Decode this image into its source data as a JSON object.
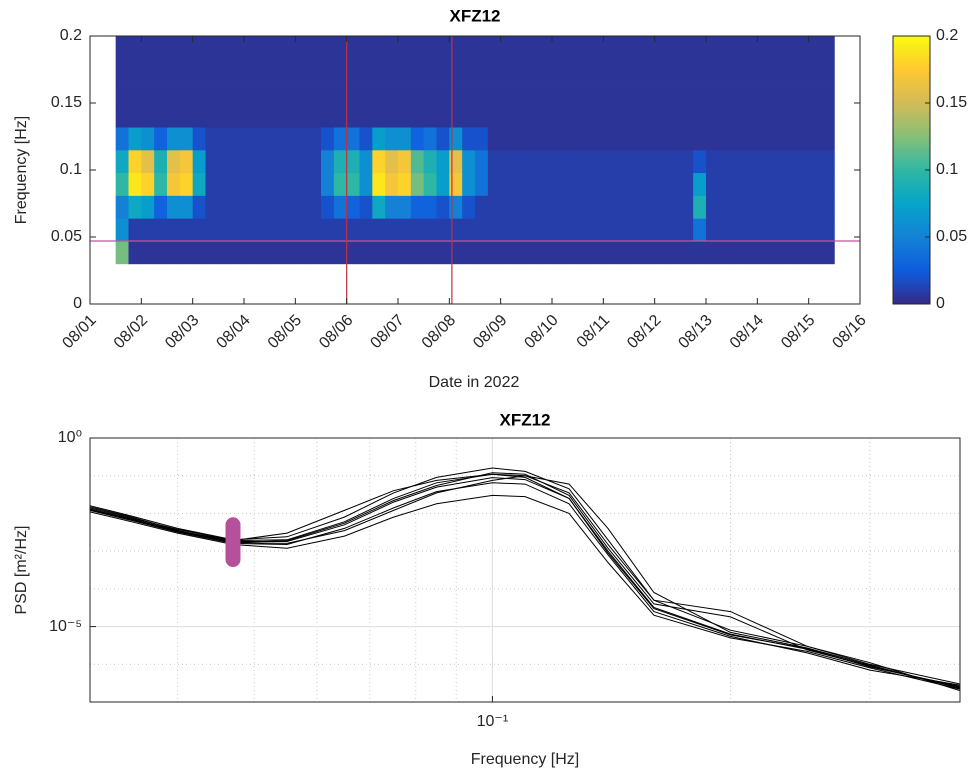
{
  "chart_data": [
    {
      "type": "heatmap",
      "title": "XFZ12",
      "x_label": "Date in 2022",
      "y_label": "Frequency [Hz]",
      "xlim": [
        1,
        16
      ],
      "xticks": [
        {
          "value": 1,
          "label": "08/01"
        },
        {
          "value": 2,
          "label": "08/02"
        },
        {
          "value": 3,
          "label": "08/03"
        },
        {
          "value": 4,
          "label": "08/04"
        },
        {
          "value": 5,
          "label": "08/05"
        },
        {
          "value": 6,
          "label": "08/06"
        },
        {
          "value": 7,
          "label": "08/07"
        },
        {
          "value": 8,
          "label": "08/08"
        },
        {
          "value": 9,
          "label": "08/09"
        },
        {
          "value": 10,
          "label": "08/10"
        },
        {
          "value": 11,
          "label": "08/11"
        },
        {
          "value": 12,
          "label": "08/12"
        },
        {
          "value": 13,
          "label": "08/13"
        },
        {
          "value": 14,
          "label": "08/14"
        },
        {
          "value": 15,
          "label": "08/15"
        },
        {
          "value": 16,
          "label": "08/16"
        }
      ],
      "ylim": [
        0,
        0.2
      ],
      "yticks": [
        0,
        0.05,
        0.1,
        0.15,
        0.2
      ],
      "x": [
        1.625,
        1.875,
        2.125,
        2.375,
        2.625,
        2.875,
        3.125,
        3.375,
        3.625,
        3.875,
        4.125,
        4.375,
        4.625,
        4.875,
        5.125,
        5.375,
        5.625,
        5.875,
        6.125,
        6.375,
        6.625,
        6.875,
        7.125,
        7.375,
        7.625,
        7.875,
        8.125,
        8.375,
        8.625,
        8.875,
        9.125,
        9.375,
        9.625,
        9.875,
        10.125,
        10.375,
        10.625,
        10.875,
        11.125,
        11.375,
        11.625,
        11.875,
        12.125,
        12.375,
        12.625,
        12.875,
        13.125,
        13.375,
        13.625,
        13.875,
        14.125,
        14.375,
        14.625,
        14.875,
        15.125,
        15.375
      ],
      "y": [
        0.0385,
        0.0555,
        0.0725,
        0.0895,
        0.1065,
        0.1235,
        0.1405,
        0.1575,
        0.1745,
        0.1915
      ],
      "z": [
        [
          0.12,
          0.005,
          0.005,
          0.005,
          0.005,
          0.005,
          0.005,
          0.005,
          0.005,
          0.005,
          0.005,
          0.005,
          0.005,
          0.005,
          0.005,
          0.005,
          0.005,
          0.005,
          0.005,
          0.005,
          0.005,
          0.005,
          0.005,
          0.005,
          0.005,
          0.005,
          0.005,
          0.005,
          0.005,
          0.005,
          0.005,
          0.005,
          0.005,
          0.005,
          0.005,
          0.005,
          0.005,
          0.005,
          0.005,
          0.005,
          0.005,
          0.005,
          0.005,
          0.005,
          0.005,
          0.005,
          0.005,
          0.005,
          0.005,
          0.005,
          0.005,
          0.005,
          0.005,
          0.005,
          0.005,
          0.005
        ],
        [
          0.06,
          0.01,
          0.01,
          0.01,
          0.01,
          0.01,
          0.01,
          0.01,
          0.01,
          0.01,
          0.01,
          0.01,
          0.01,
          0.01,
          0.01,
          0.01,
          0.01,
          0.01,
          0.01,
          0.01,
          0.01,
          0.01,
          0.01,
          0.01,
          0.01,
          0.01,
          0.01,
          0.01,
          0.01,
          0.01,
          0.01,
          0.01,
          0.01,
          0.01,
          0.01,
          0.01,
          0.01,
          0.01,
          0.01,
          0.01,
          0.01,
          0.01,
          0.01,
          0.01,
          0.01,
          0.04,
          0.01,
          0.01,
          0.01,
          0.01,
          0.01,
          0.01,
          0.01,
          0.01,
          0.01,
          0.01
        ],
        [
          0.05,
          0.08,
          0.07,
          0.03,
          0.06,
          0.06,
          0.02,
          0.01,
          0.01,
          0.01,
          0.01,
          0.01,
          0.01,
          0.01,
          0.01,
          0.01,
          0.02,
          0.04,
          0.03,
          0.02,
          0.08,
          0.05,
          0.05,
          0.03,
          0.03,
          0.02,
          0.05,
          0.02,
          0.01,
          0.01,
          0.01,
          0.01,
          0.01,
          0.01,
          0.01,
          0.01,
          0.01,
          0.01,
          0.01,
          0.01,
          0.01,
          0.01,
          0.01,
          0.01,
          0.01,
          0.09,
          0.01,
          0.01,
          0.01,
          0.01,
          0.01,
          0.01,
          0.01,
          0.01,
          0.01,
          0.01
        ],
        [
          0.1,
          0.19,
          0.18,
          0.1,
          0.17,
          0.18,
          0.08,
          0.01,
          0.01,
          0.01,
          0.01,
          0.01,
          0.01,
          0.01,
          0.01,
          0.01,
          0.05,
          0.1,
          0.1,
          0.06,
          0.19,
          0.17,
          0.18,
          0.12,
          0.1,
          0.07,
          0.17,
          0.06,
          0.04,
          0.01,
          0.01,
          0.01,
          0.01,
          0.01,
          0.01,
          0.01,
          0.01,
          0.01,
          0.01,
          0.01,
          0.01,
          0.01,
          0.01,
          0.01,
          0.01,
          0.07,
          0.01,
          0.01,
          0.01,
          0.01,
          0.01,
          0.01,
          0.01,
          0.01,
          0.01,
          0.01
        ],
        [
          0.08,
          0.18,
          0.16,
          0.09,
          0.16,
          0.17,
          0.07,
          0.01,
          0.01,
          0.01,
          0.01,
          0.01,
          0.01,
          0.01,
          0.01,
          0.01,
          0.05,
          0.09,
          0.09,
          0.06,
          0.18,
          0.16,
          0.17,
          0.11,
          0.09,
          0.07,
          0.16,
          0.06,
          0.04,
          0.01,
          0.01,
          0.01,
          0.01,
          0.01,
          0.01,
          0.01,
          0.01,
          0.01,
          0.01,
          0.01,
          0.01,
          0.01,
          0.01,
          0.01,
          0.01,
          0.02,
          0.01,
          0.01,
          0.01,
          0.01,
          0.01,
          0.01,
          0.01,
          0.01,
          0.01,
          0.01
        ],
        [
          0.04,
          0.07,
          0.06,
          0.03,
          0.06,
          0.06,
          0.02,
          0.01,
          0.01,
          0.01,
          0.01,
          0.01,
          0.01,
          0.01,
          0.01,
          0.01,
          0.02,
          0.04,
          0.04,
          0.02,
          0.07,
          0.06,
          0.06,
          0.03,
          0.04,
          0.02,
          0.06,
          0.02,
          0.02,
          0.005,
          0.005,
          0.005,
          0.005,
          0.005,
          0.005,
          0.005,
          0.005,
          0.005,
          0.005,
          0.005,
          0.005,
          0.005,
          0.005,
          0.005,
          0.005,
          0.005,
          0.005,
          0.005,
          0.005,
          0.005,
          0.005,
          0.005,
          0.005,
          0.005,
          0.005,
          0.005
        ],
        [
          0.005,
          0.005,
          0.005,
          0.005,
          0.005,
          0.005,
          0.005,
          0.005,
          0.005,
          0.005,
          0.005,
          0.005,
          0.005,
          0.005,
          0.005,
          0.005,
          0.005,
          0.005,
          0.005,
          0.005,
          0.005,
          0.005,
          0.005,
          0.005,
          0.005,
          0.005,
          0.005,
          0.005,
          0.005,
          0.005,
          0.005,
          0.005,
          0.005,
          0.005,
          0.005,
          0.005,
          0.005,
          0.005,
          0.005,
          0.005,
          0.005,
          0.005,
          0.005,
          0.005,
          0.005,
          0.005,
          0.005,
          0.005,
          0.005,
          0.005,
          0.005,
          0.005,
          0.005,
          0.005,
          0.005,
          0.005
        ],
        [
          0.005,
          0.005,
          0.005,
          0.005,
          0.005,
          0.005,
          0.005,
          0.005,
          0.005,
          0.005,
          0.005,
          0.005,
          0.005,
          0.005,
          0.005,
          0.005,
          0.005,
          0.005,
          0.005,
          0.005,
          0.005,
          0.005,
          0.005,
          0.005,
          0.005,
          0.005,
          0.005,
          0.005,
          0.005,
          0.005,
          0.005,
          0.005,
          0.005,
          0.005,
          0.005,
          0.005,
          0.005,
          0.005,
          0.005,
          0.005,
          0.005,
          0.005,
          0.005,
          0.005,
          0.005,
          0.005,
          0.005,
          0.005,
          0.005,
          0.005,
          0.005,
          0.005,
          0.005,
          0.005,
          0.005,
          0.005
        ],
        [
          0.005,
          0.005,
          0.005,
          0.005,
          0.005,
          0.005,
          0.005,
          0.005,
          0.005,
          0.005,
          0.005,
          0.005,
          0.005,
          0.005,
          0.005,
          0.005,
          0.005,
          0.005,
          0.005,
          0.005,
          0.005,
          0.005,
          0.005,
          0.005,
          0.005,
          0.005,
          0.005,
          0.005,
          0.005,
          0.005,
          0.005,
          0.005,
          0.005,
          0.005,
          0.005,
          0.005,
          0.005,
          0.005,
          0.005,
          0.005,
          0.005,
          0.005,
          0.005,
          0.005,
          0.005,
          0.005,
          0.005,
          0.005,
          0.005,
          0.005,
          0.005,
          0.005,
          0.005,
          0.005,
          0.005,
          0.005
        ],
        [
          0.005,
          0.005,
          0.005,
          0.005,
          0.005,
          0.005,
          0.005,
          0.005,
          0.005,
          0.005,
          0.005,
          0.005,
          0.005,
          0.005,
          0.005,
          0.005,
          0.005,
          0.005,
          0.005,
          0.005,
          0.005,
          0.005,
          0.005,
          0.005,
          0.005,
          0.005,
          0.005,
          0.005,
          0.005,
          0.005,
          0.005,
          0.005,
          0.005,
          0.005,
          0.005,
          0.005,
          0.005,
          0.005,
          0.005,
          0.005,
          0.005,
          0.005,
          0.005,
          0.005,
          0.005,
          0.005,
          0.005,
          0.005,
          0.005,
          0.005,
          0.005,
          0.005,
          0.005,
          0.005,
          0.005,
          0.005
        ]
      ],
      "colormap": [
        "#352a87",
        "#0f5cdd",
        "#1481d6",
        "#06a4ca",
        "#2eb7a4",
        "#87bf77",
        "#d1bb59",
        "#fec832",
        "#f9fb0e"
      ],
      "clim": [
        0,
        0.2
      ],
      "cticks": [
        0,
        0.05,
        0.1,
        0.15,
        0.2
      ],
      "hlines": [
        {
          "value": 0.047,
          "color": "#c8509f"
        }
      ],
      "vlines": [
        {
          "value": 6,
          "color": "#c2303f"
        },
        {
          "value": 8.05,
          "color": "#c2303f"
        }
      ]
    },
    {
      "type": "line",
      "title": "XFZ12",
      "x_label": "Frequency [Hz]",
      "y_label": "PSD [m²/Hz]",
      "xscale": "log",
      "yscale": "log",
      "grid": true,
      "xlim": [
        0.031,
        0.39
      ],
      "ylim": [
        1e-07,
        1
      ],
      "xticks": [
        {
          "value": 0.1,
          "label": "10⁻¹"
        }
      ],
      "xminorticks": [
        0.04,
        0.05,
        0.06,
        0.07,
        0.08,
        0.09,
        0.2,
        0.3
      ],
      "yticks": [
        {
          "value": 1e-05,
          "label": "10⁻⁵"
        },
        {
          "value": 1,
          "label": "10⁰"
        }
      ],
      "yminorticks": [
        1e-06,
        0.0001,
        0.001,
        0.01,
        0.1
      ],
      "x": [
        0.031,
        0.035,
        0.04,
        0.047,
        0.055,
        0.065,
        0.075,
        0.085,
        0.1,
        0.11,
        0.125,
        0.14,
        0.16,
        0.2,
        0.25,
        0.3,
        0.39
      ],
      "series": [
        {
          "color": "#000000",
          "values": [
            0.013,
            0.0071,
            0.0035,
            0.0018,
            0.0018,
            0.005,
            0.02,
            0.05,
            0.089,
            0.079,
            0.025,
            0.001,
            3.2e-05,
            6.3e-06,
            2.5e-06,
            8.9e-07,
            2.5e-07
          ]
        },
        {
          "color": "#000000",
          "values": [
            0.016,
            0.0085,
            0.004,
            0.002,
            0.0024,
            0.008,
            0.035,
            0.09,
            0.16,
            0.13,
            0.045,
            0.002,
            5e-05,
            8e-06,
            3e-06,
            1e-06,
            3e-07
          ]
        },
        {
          "color": "#000000",
          "values": [
            0.011,
            0.006,
            0.003,
            0.0015,
            0.0012,
            0.0025,
            0.008,
            0.018,
            0.03,
            0.028,
            0.01,
            0.0005,
            2e-05,
            5e-06,
            2.2e-06,
            8e-07,
            2.2e-07
          ]
        },
        {
          "color": "#000000",
          "values": [
            0.014,
            0.0075,
            0.0038,
            0.0019,
            0.002,
            0.006,
            0.025,
            0.065,
            0.11,
            0.1,
            0.035,
            0.0015,
            5e-05,
            2.5e-05,
            3e-06,
            1.1e-06,
            2e-07
          ]
        },
        {
          "color": "#000000",
          "values": [
            0.012,
            0.0065,
            0.0032,
            0.0016,
            0.0015,
            0.004,
            0.014,
            0.038,
            0.065,
            0.06,
            0.018,
            0.0008,
            2.5e-05,
            5.5e-06,
            2e-06,
            7e-07,
            2.8e-07
          ]
        },
        {
          "color": "#000000",
          "values": [
            0.015,
            0.008,
            0.0036,
            0.0017,
            0.0016,
            0.0035,
            0.012,
            0.035,
            0.075,
            0.1,
            0.06,
            0.004,
            8e-05,
            7e-06,
            2.7e-06,
            9.5e-07,
            2.3e-07
          ]
        },
        {
          "color": "#000000",
          "values": [
            0.013,
            0.007,
            0.0034,
            0.0019,
            0.003,
            0.012,
            0.04,
            0.075,
            0.11,
            0.09,
            0.025,
            0.0009,
            3e-05,
            6e-06,
            2.6e-06,
            8.5e-07,
            2.6e-07
          ]
        },
        {
          "color": "#000000",
          "values": [
            0.0125,
            0.0068,
            0.0033,
            0.0017,
            0.0019,
            0.0055,
            0.022,
            0.055,
            0.12,
            0.11,
            0.03,
            0.0012,
            4e-05,
            1.8e-05,
            2.4e-06,
            9e-07,
            2.4e-07
          ]
        }
      ],
      "highlight": {
        "x": 0.047,
        "y": [
          0.005,
          0.0006
        ],
        "color": "#b5519b"
      }
    }
  ]
}
